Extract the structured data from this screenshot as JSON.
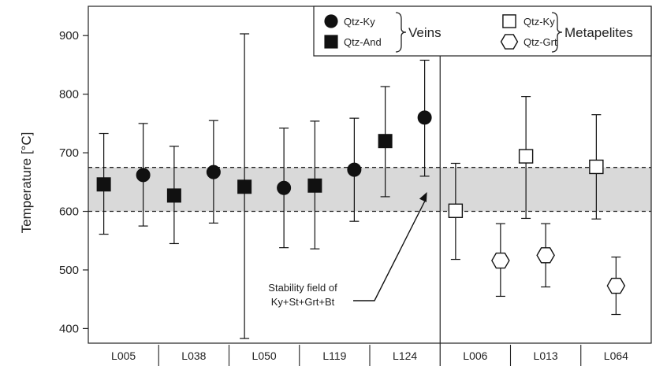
{
  "chart_data": {
    "type": "scatter",
    "title": "",
    "xlabel": "",
    "ylabel": "Temperature [°C]",
    "ylim": [
      375,
      950
    ],
    "yticks": [
      400,
      500,
      600,
      700,
      800,
      900
    ],
    "categories": [
      "L005",
      "L038",
      "L050",
      "L119",
      "L124",
      "L006",
      "L013",
      "L064"
    ],
    "band": {
      "ymin": 600,
      "ymax": 675,
      "color": "#d9d9d9"
    },
    "annotation": {
      "lines": [
        "Stability field of",
        "Ky+St+Grt+Bt"
      ],
      "target": {
        "category": "L124",
        "y": 633
      }
    },
    "groups": [
      {
        "label": "Veins",
        "categories": [
          "L005",
          "L038",
          "L050",
          "L119",
          "L124"
        ]
      },
      {
        "label": "Metapelites",
        "categories": [
          "L006",
          "L013",
          "L064"
        ]
      }
    ],
    "legend": {
      "position": "top",
      "entries": [
        {
          "label": "Qtz-Ky",
          "marker": "circle-filled"
        },
        {
          "label": "Qtz-And",
          "marker": "square-filled"
        },
        {
          "label": "Qtz-Ky",
          "marker": "square-open"
        },
        {
          "label": "Qtz-Grt",
          "marker": "hexagon-open"
        }
      ]
    },
    "series": [
      {
        "name": "Qtz-Ky",
        "marker": "circle-filled",
        "points": [
          {
            "category": "L005",
            "y": 662,
            "low": 575,
            "high": 750
          },
          {
            "category": "L038",
            "y": 667,
            "low": 580,
            "high": 755
          },
          {
            "category": "L050",
            "y": 640,
            "low": 538,
            "high": 742
          },
          {
            "category": "L119",
            "y": 671,
            "low": 583,
            "high": 759
          },
          {
            "category": "L124",
            "y": 760,
            "low": 660,
            "high": 858
          }
        ]
      },
      {
        "name": "Qtz-And",
        "marker": "square-filled",
        "points": [
          {
            "category": "L005",
            "y": 646,
            "low": 561,
            "high": 733
          },
          {
            "category": "L038",
            "y": 627,
            "low": 545,
            "high": 711
          },
          {
            "category": "L050",
            "y": 642,
            "low": 383,
            "high": 903
          },
          {
            "category": "L119",
            "y": 644,
            "low": 536,
            "high": 754
          },
          {
            "category": "L124",
            "y": 720,
            "low": 625,
            "high": 813
          }
        ]
      },
      {
        "name": "Qtz-Ky",
        "marker": "square-open",
        "points": [
          {
            "category": "L006",
            "y": 601,
            "low": 518,
            "high": 682
          },
          {
            "category": "L013",
            "y": 694,
            "low": 588,
            "high": 796
          },
          {
            "category": "L064",
            "y": 676,
            "low": 587,
            "high": 765
          }
        ]
      },
      {
        "name": "Qtz-Grt",
        "marker": "hexagon-open",
        "points": [
          {
            "category": "L006",
            "y": 516,
            "low": 455,
            "high": 579
          },
          {
            "category": "L013",
            "y": 525,
            "low": 471,
            "high": 579
          },
          {
            "category": "L064",
            "y": 473,
            "low": 424,
            "high": 522
          }
        ]
      }
    ]
  }
}
